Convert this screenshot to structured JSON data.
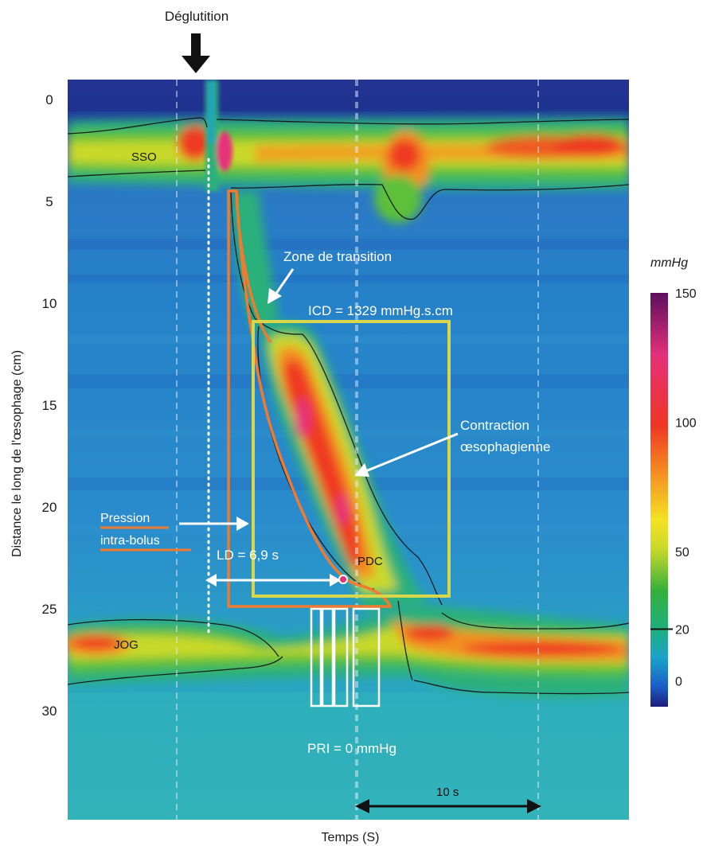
{
  "chart_data": {
    "type": "heatmap",
    "title": "",
    "top_label": "Déglutition",
    "xlabel": "Temps (S)",
    "ylabel": "Distance le long de l'œsophage (cm)",
    "y_ticks": [
      "0",
      "5",
      "10",
      "15",
      "20",
      "25",
      "30"
    ],
    "y_tick_values": [
      0,
      5,
      10,
      15,
      20,
      25,
      30
    ],
    "ylim": [
      0,
      35.8
    ],
    "x_time_range_s": [
      0,
      31
    ],
    "grid": "dashed vertical lines",
    "colorbar": {
      "title": "mmHg",
      "ticks": [
        "150",
        "100",
        "50",
        "20",
        "0"
      ],
      "tick_values": [
        150,
        100,
        50,
        20,
        0
      ],
      "range": [
        -10,
        150
      ],
      "colors": [
        "#1c1c7a",
        "#1a5fc8",
        "#19a3c8",
        "#1fb07a",
        "#33b03c",
        "#c8d82a",
        "#f3e323",
        "#f59a23",
        "#ef3523",
        "#e5307a",
        "#5c0f5e"
      ]
    },
    "annotations": {
      "sso": "SSO",
      "jog": "JOG",
      "zone_transition": "Zone de transition",
      "icd": "ICD = 1329 mmHg.s.cm",
      "contraction_line1": "Contraction",
      "contraction_line2": "œsophagienne",
      "pression_line1": "Pression",
      "pression_line2": "intra-bolus",
      "ld": "LD = 6,9 s",
      "pdc": "PDC",
      "pri": "PRI = 0 mmHg",
      "scale_bar": "10 s"
    },
    "values": {
      "icd_mmHg_s_cm": 1329,
      "ld_s": 6.9,
      "pri_mmHg": 0,
      "scale_bar_s": 10
    },
    "pressure_features": [
      {
        "name": "SSO",
        "depth_cm": [
          1.5,
          4
        ],
        "time_s": [
          0,
          31
        ],
        "peak_mmHg": 90
      },
      {
        "name": "JOG",
        "depth_cm": [
          25.5,
          29
        ],
        "time_s": [
          0,
          31
        ],
        "peak_mmHg": 80
      },
      {
        "name": "Contraction œsophagienne",
        "depth_cm": [
          12,
          24
        ],
        "time_s": [
          10,
          17
        ],
        "peak_mmHg": 140
      }
    ]
  }
}
